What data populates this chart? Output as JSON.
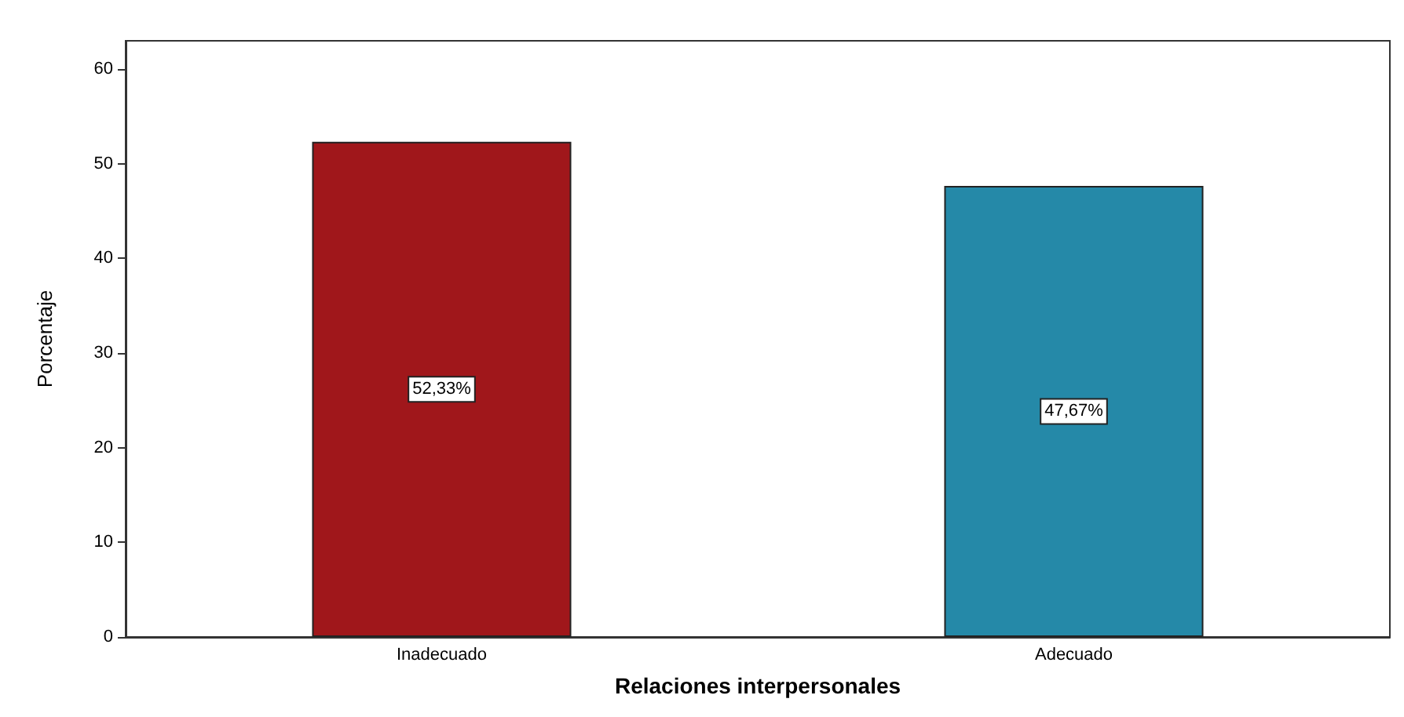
{
  "chart_data": {
    "type": "bar",
    "xlabel": "Relaciones interpersonales",
    "ylabel": "Porcentaje",
    "categories": [
      "Inadecuado",
      "Adecuado"
    ],
    "values": [
      52.33,
      47.67
    ],
    "colors": [
      "#a0171b",
      "#2589a8"
    ],
    "value_labels": [
      "52,33%",
      "47,67%"
    ],
    "ylim": [
      0,
      63
    ],
    "yticks": [
      0,
      10,
      20,
      30,
      40,
      50,
      60
    ],
    "grid": false
  }
}
